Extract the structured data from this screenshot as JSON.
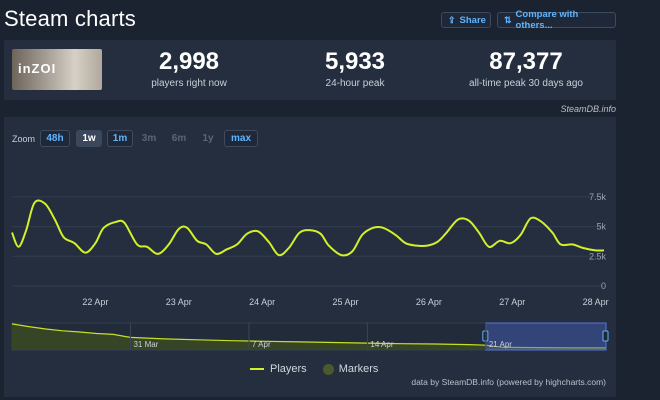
{
  "page": {
    "title": "Steam charts"
  },
  "header": {
    "share_label": "Share",
    "compare_label": "Compare with others..."
  },
  "game": {
    "logo_text": "inZOI"
  },
  "stats": [
    {
      "value": "2,998",
      "label": "players right now"
    },
    {
      "value": "5,933",
      "label": "24-hour peak"
    },
    {
      "value": "87,377",
      "label": "all-time peak 30 days ago"
    }
  ],
  "credit": "SteamDB.info",
  "zoom": {
    "label": "Zoom",
    "buttons": [
      {
        "label": "48h",
        "state": "on"
      },
      {
        "label": "1w",
        "state": "sel"
      },
      {
        "label": "1m",
        "state": "on"
      },
      {
        "label": "3m",
        "state": "off"
      },
      {
        "label": "6m",
        "state": "off"
      },
      {
        "label": "1y",
        "state": "off"
      },
      {
        "label": "max",
        "state": "on"
      }
    ]
  },
  "footer": "data by SteamDB.info (powered by highcharts.com)",
  "chart_data": {
    "type": "line",
    "series": [
      {
        "name": "Players",
        "color": "#d3f02a",
        "x": [
          21.0,
          21.08,
          21.17,
          21.27,
          21.4,
          21.52,
          21.62,
          21.75,
          21.88,
          22.0,
          22.1,
          22.25,
          22.35,
          22.5,
          22.62,
          22.75,
          22.88,
          23.0,
          23.1,
          23.22,
          23.33,
          23.45,
          23.58,
          23.7,
          23.82,
          23.95,
          24.08,
          24.2,
          24.32,
          24.45,
          24.58,
          24.7,
          24.8,
          24.95,
          25.08,
          25.2,
          25.33,
          25.45,
          25.6,
          25.72,
          25.85,
          25.98,
          26.1,
          26.2,
          26.35,
          26.48,
          26.6,
          26.72,
          26.85,
          26.98,
          27.1,
          27.22,
          27.35,
          27.48,
          27.58,
          27.72,
          27.85,
          28.0,
          28.1
        ],
        "y": [
          4.5,
          3.3,
          4.7,
          7.0,
          6.9,
          5.5,
          4.1,
          3.6,
          2.8,
          3.6,
          4.9,
          5.4,
          5.3,
          3.5,
          3.3,
          2.7,
          3.5,
          4.8,
          4.9,
          3.8,
          3.5,
          2.7,
          3.1,
          3.5,
          4.4,
          4.6,
          3.7,
          2.6,
          3.2,
          4.5,
          4.7,
          4.4,
          3.4,
          2.6,
          2.9,
          4.3,
          4.9,
          4.9,
          4.3,
          3.6,
          3.4,
          3.4,
          3.7,
          4.4,
          5.6,
          5.5,
          4.5,
          3.3,
          3.8,
          3.6,
          4.3,
          5.7,
          5.4,
          4.5,
          3.5,
          3.5,
          3.2,
          3.0,
          3.0
        ]
      }
    ],
    "x_ticks": [
      "22 Apr",
      "23 Apr",
      "24 Apr",
      "25 Apr",
      "26 Apr",
      "27 Apr",
      "28 Apr"
    ],
    "x_tick_values": [
      22,
      23,
      24,
      25,
      26,
      27,
      28
    ],
    "xlim": [
      21.0,
      28.1
    ],
    "y_ticks": [
      "0",
      "2.5k",
      "5k",
      "7.5k"
    ],
    "y_tick_values": [
      0,
      2.5,
      5,
      7.5
    ],
    "ylim": [
      0,
      8.5
    ],
    "grid": true,
    "legend": {
      "placement": "bottom-center",
      "items": [
        "Players",
        "Markers"
      ]
    },
    "navigator": {
      "ticks": [
        "31 Mar",
        "7 Apr",
        "14 Apr",
        "21 Apr"
      ],
      "tick_values": [
        8,
        15,
        22,
        29
      ],
      "xlim": [
        1,
        36.1
      ],
      "ylim": [
        0,
        90
      ],
      "selected_range": [
        29,
        36.1
      ],
      "x": [
        1,
        2,
        3,
        4,
        5,
        6,
        7,
        8,
        10,
        12,
        14,
        16,
        18,
        20,
        22,
        24,
        26,
        28,
        29,
        30,
        32,
        34,
        36.1
      ],
      "y": [
        87,
        78,
        70,
        64,
        60,
        55,
        52,
        42,
        37,
        34,
        31,
        29,
        27,
        25,
        23,
        21,
        20,
        18,
        16,
        9,
        8,
        7,
        7
      ]
    }
  }
}
